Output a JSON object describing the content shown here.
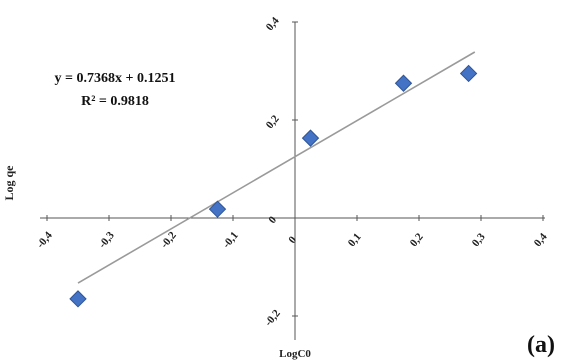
{
  "chart_data": {
    "type": "scatter",
    "xlabel": "LogC0",
    "ylabel": "Log qe",
    "xlim": [
      -0.4,
      0.4
    ],
    "ylim": [
      -0.2,
      0.4
    ],
    "x_ticks": [
      -0.4,
      -0.3,
      -0.2,
      -0.1,
      0,
      0.1,
      0.2,
      0.3,
      0.4
    ],
    "x_tick_labels": [
      "-0,4",
      "-0,3",
      "-0,2",
      "-0,1",
      "0",
      "0,1",
      "0,2",
      "0,3",
      "0,4"
    ],
    "y_ticks": [
      -0.2,
      0,
      0.2,
      0.4
    ],
    "y_tick_labels": [
      "-0,2",
      "0",
      "0,2",
      "0,4"
    ],
    "series": [
      {
        "x": [
          -0.35,
          -0.125,
          0.025,
          0.175,
          0.28
        ],
        "y": [
          -0.165,
          0.018,
          0.163,
          0.275,
          0.295
        ],
        "marker": "diamond",
        "color": "#4472C4"
      }
    ],
    "trendline": {
      "slope": 0.7368,
      "intercept": 0.1251,
      "x_range": [
        -0.35,
        0.29
      ],
      "color": "#9a9a9a"
    },
    "equation_text": "y = 0.7368x + 0.1251",
    "r2_text": "R² = 0.9818",
    "panel_label": "(a)",
    "grid": false,
    "legend": "none"
  }
}
